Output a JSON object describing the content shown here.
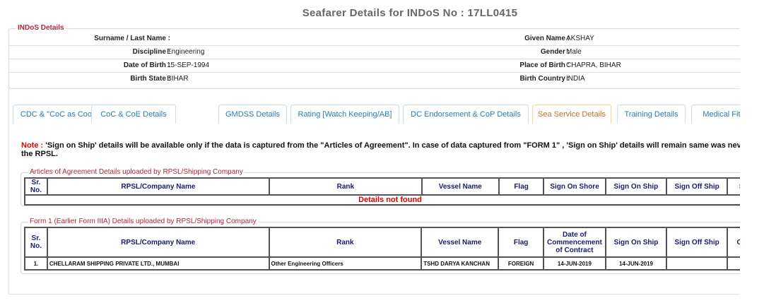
{
  "page_title": "Seafarer Details for INDoS No : 17LL0415",
  "indos": {
    "legend": "INDoS Details",
    "rows": [
      {
        "l1": "Surname / Last Name :",
        "v1": "",
        "l2": "Given Name :",
        "v2": "AKSHAY"
      },
      {
        "l1": "Discipline :",
        "v1": "Engineering",
        "l2": "Gender :",
        "v2": "Male"
      },
      {
        "l1": "Date of Birth :",
        "v1": "15-SEP-1994",
        "l2": "Place of Birth :",
        "v2": "CHAPRA, BIHAR"
      },
      {
        "l1": "Birth State :",
        "v1": "BIHAR",
        "l2": "Birth Country :",
        "v2": "INDIA"
      }
    ]
  },
  "tabs": [
    "CDC & \"CoC as Cook\" Details",
    "CoC & CoE Details",
    "GMDSS Details",
    "Rating [Watch Keeping/AB]",
    "DC Endorsement & CoP Details",
    "Sea Service Details",
    "Training Details",
    "Medical Fitn"
  ],
  "active_tab": "Sea Service Details",
  "note": {
    "label": "Note :",
    "text": " 'Sign on Ship' details will be available only if the data is captured from the \"Articles of Agreement\". In case of data captured from \"FORM 1\" , 'Sign on Ship' details will remain same was never uploaded by the RPSL."
  },
  "aoa": {
    "legend": "Articles of Agreement Details uploaded by RPSL/Shipping Company",
    "headers": [
      "Sr. No.",
      "RPSL/Company Name",
      "Rank",
      "Vessel Name",
      "Flag",
      "Sign On Shore",
      "Sign On Ship",
      "Sign Off Ship",
      "S"
    ],
    "empty": "Details not found"
  },
  "form1": {
    "legend": "Form 1 (Earlier Form IIIA) Details uploaded by RPSL/Shipping Company",
    "headers": [
      "Sr. No.",
      "RPSL/Company Name",
      "Rank",
      "Vessel Name",
      "Flag",
      "Date of Commencement of Contract",
      "Sign On Ship",
      "Sign Off Ship",
      "Co"
    ],
    "rows": [
      [
        "1.",
        "CHELLARAM SHIPPING PRIVATE LTD., MUMBAI",
        "Other Engineering Officers",
        "TSHD DARYA KANCHAN",
        "FOREIGN",
        "14-JUN-2019",
        "14-JUN-2019",
        "",
        ""
      ]
    ]
  }
}
